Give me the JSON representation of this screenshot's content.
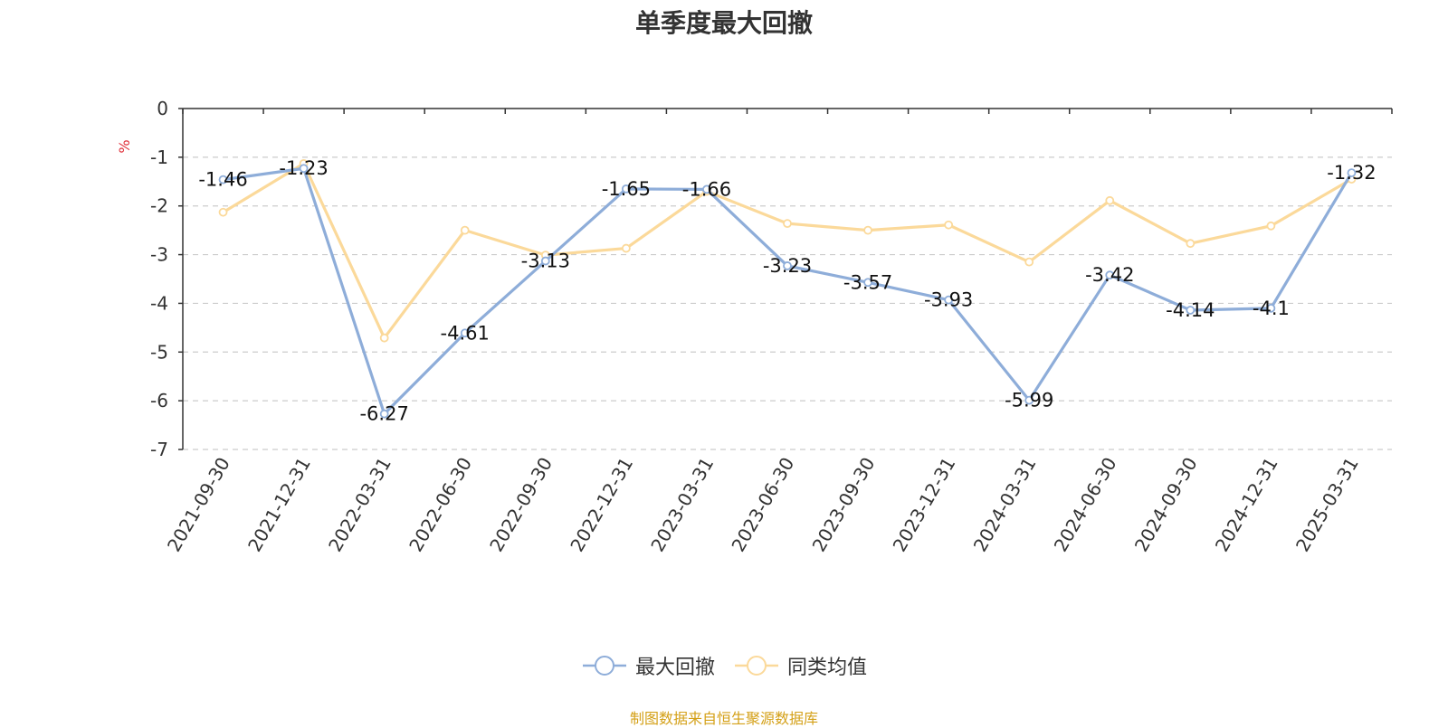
{
  "chart_data": {
    "type": "line",
    "title": "单季度最大回撤",
    "ylabel": "%",
    "categories": [
      "2021-09-30",
      "2021-12-31",
      "2022-03-31",
      "2022-06-30",
      "2022-09-30",
      "2022-12-31",
      "2023-03-31",
      "2023-06-30",
      "2023-09-30",
      "2023-12-31",
      "2024-03-31",
      "2024-06-30",
      "2024-09-30",
      "2024-12-31",
      "2025-03-31"
    ],
    "y_ticks": [
      "0",
      "-1",
      "-2",
      "-3",
      "-4",
      "-5",
      "-6",
      "-7"
    ],
    "ylim": [
      -7,
      0
    ],
    "grid": true,
    "legend_position": "bottom",
    "series": [
      {
        "name": "最大回撤",
        "color": "#8eadd9",
        "values": [
          -1.46,
          -1.23,
          -6.27,
          -4.61,
          -3.13,
          -1.65,
          -1.66,
          -3.23,
          -3.57,
          -3.93,
          -5.99,
          -3.42,
          -4.14,
          -4.1,
          -1.32
        ],
        "labels": [
          "-1.46",
          "-1.23",
          "-6.27",
          "-4.61",
          "-3.13",
          "-1.65",
          "-1.66",
          "-3.23",
          "-3.57",
          "-3.93",
          "-5.99",
          "-3.42",
          "-4.14",
          "-4.1",
          "-1.32"
        ]
      },
      {
        "name": "同类均值",
        "color": "#fbd99a",
        "values": [
          -2.13,
          -1.13,
          -4.71,
          -2.5,
          -3.01,
          -2.87,
          -1.7,
          -2.36,
          -2.5,
          -2.39,
          -3.15,
          -1.89,
          -2.77,
          -2.41,
          -1.45
        ]
      }
    ],
    "source_note": "制图数据来自恒生聚源数据库"
  }
}
